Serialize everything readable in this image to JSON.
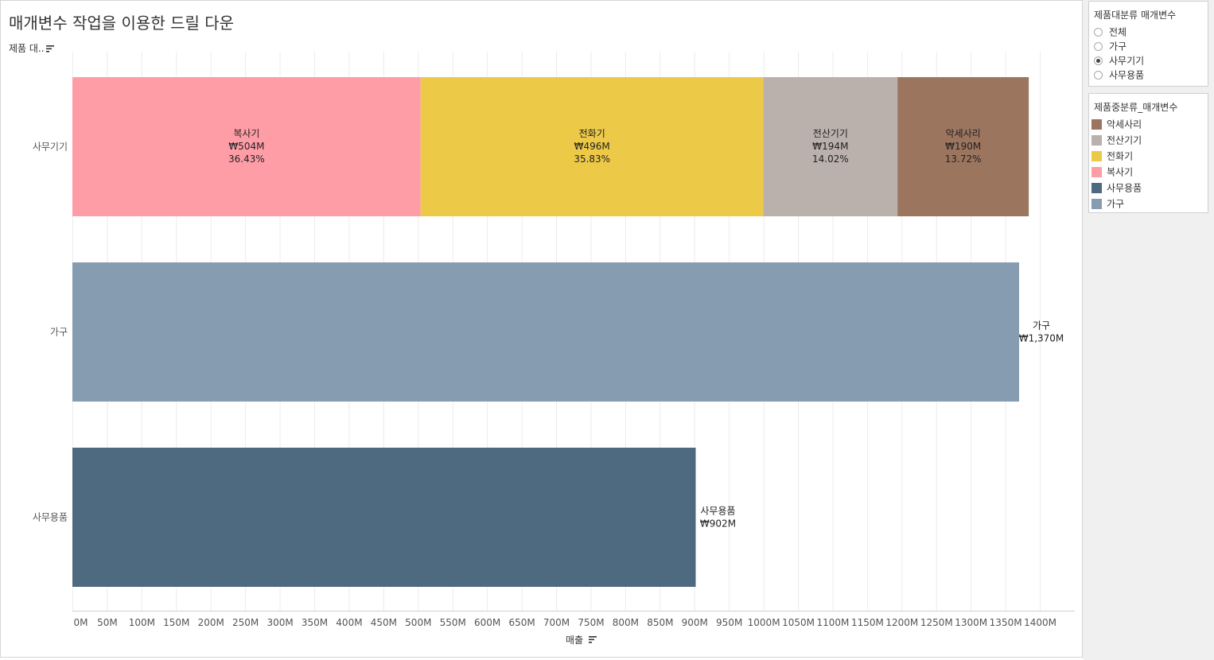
{
  "title": "매개변수 작업을 이용한 드릴 다운",
  "row_header": "제품 대..",
  "filter_panel": {
    "title": "제품대분류 매개변수",
    "options": [
      {
        "label": "전체",
        "checked": false
      },
      {
        "label": "가구",
        "checked": false
      },
      {
        "label": "사무기기",
        "checked": true
      },
      {
        "label": "사무용품",
        "checked": false
      }
    ]
  },
  "legend_panel": {
    "title": "제품중분류_매개변수",
    "items": [
      {
        "label": "악세사리",
        "color": "#9c755f"
      },
      {
        "label": "전산기기",
        "color": "#bab0ac"
      },
      {
        "label": "전화기",
        "color": "#edc948"
      },
      {
        "label": "복사기",
        "color": "#ff9da7"
      },
      {
        "label": "사무용품",
        "color": "#4e6a80"
      },
      {
        "label": "가구",
        "color": "#869cb0"
      }
    ]
  },
  "chart_data": {
    "type": "bar",
    "orientation": "horizontal",
    "stacked": true,
    "xlabel": "매출",
    "xlim": [
      0,
      1450
    ],
    "xticks": [
      "0M",
      "50M",
      "100M",
      "150M",
      "200M",
      "250M",
      "300M",
      "350M",
      "400M",
      "450M",
      "500M",
      "550M",
      "600M",
      "650M",
      "700M",
      "750M",
      "800M",
      "850M",
      "900M",
      "950M",
      "1000M",
      "1050M",
      "1100M",
      "1150M",
      "1200M",
      "1250M",
      "1300M",
      "1350M",
      "1400M"
    ],
    "grid": "vertical",
    "categories": [
      "사무기기",
      "가구",
      "사무용품"
    ],
    "bars": [
      {
        "category": "사무기기",
        "segments": [
          {
            "name": "복사기",
            "value": 504,
            "label": "₩504M",
            "pct": "36.43%",
            "color": "#ff9da7"
          },
          {
            "name": "전화기",
            "value": 496,
            "label": "₩496M",
            "pct": "35.83%",
            "color": "#edc948"
          },
          {
            "name": "전산기기",
            "value": 194,
            "label": "₩194M",
            "pct": "14.02%",
            "color": "#bab0ac"
          },
          {
            "name": "악세사리",
            "value": 190,
            "label": "₩190M",
            "pct": "13.72%",
            "color": "#9c755f"
          }
        ]
      },
      {
        "category": "가구",
        "segments": [
          {
            "name": "가구",
            "value": 1370,
            "label": "₩1,370M",
            "color": "#869cb0"
          }
        ]
      },
      {
        "category": "사무용품",
        "segments": [
          {
            "name": "사무용품",
            "value": 902,
            "label": "₩902M",
            "color": "#4e6a80"
          }
        ]
      }
    ]
  }
}
